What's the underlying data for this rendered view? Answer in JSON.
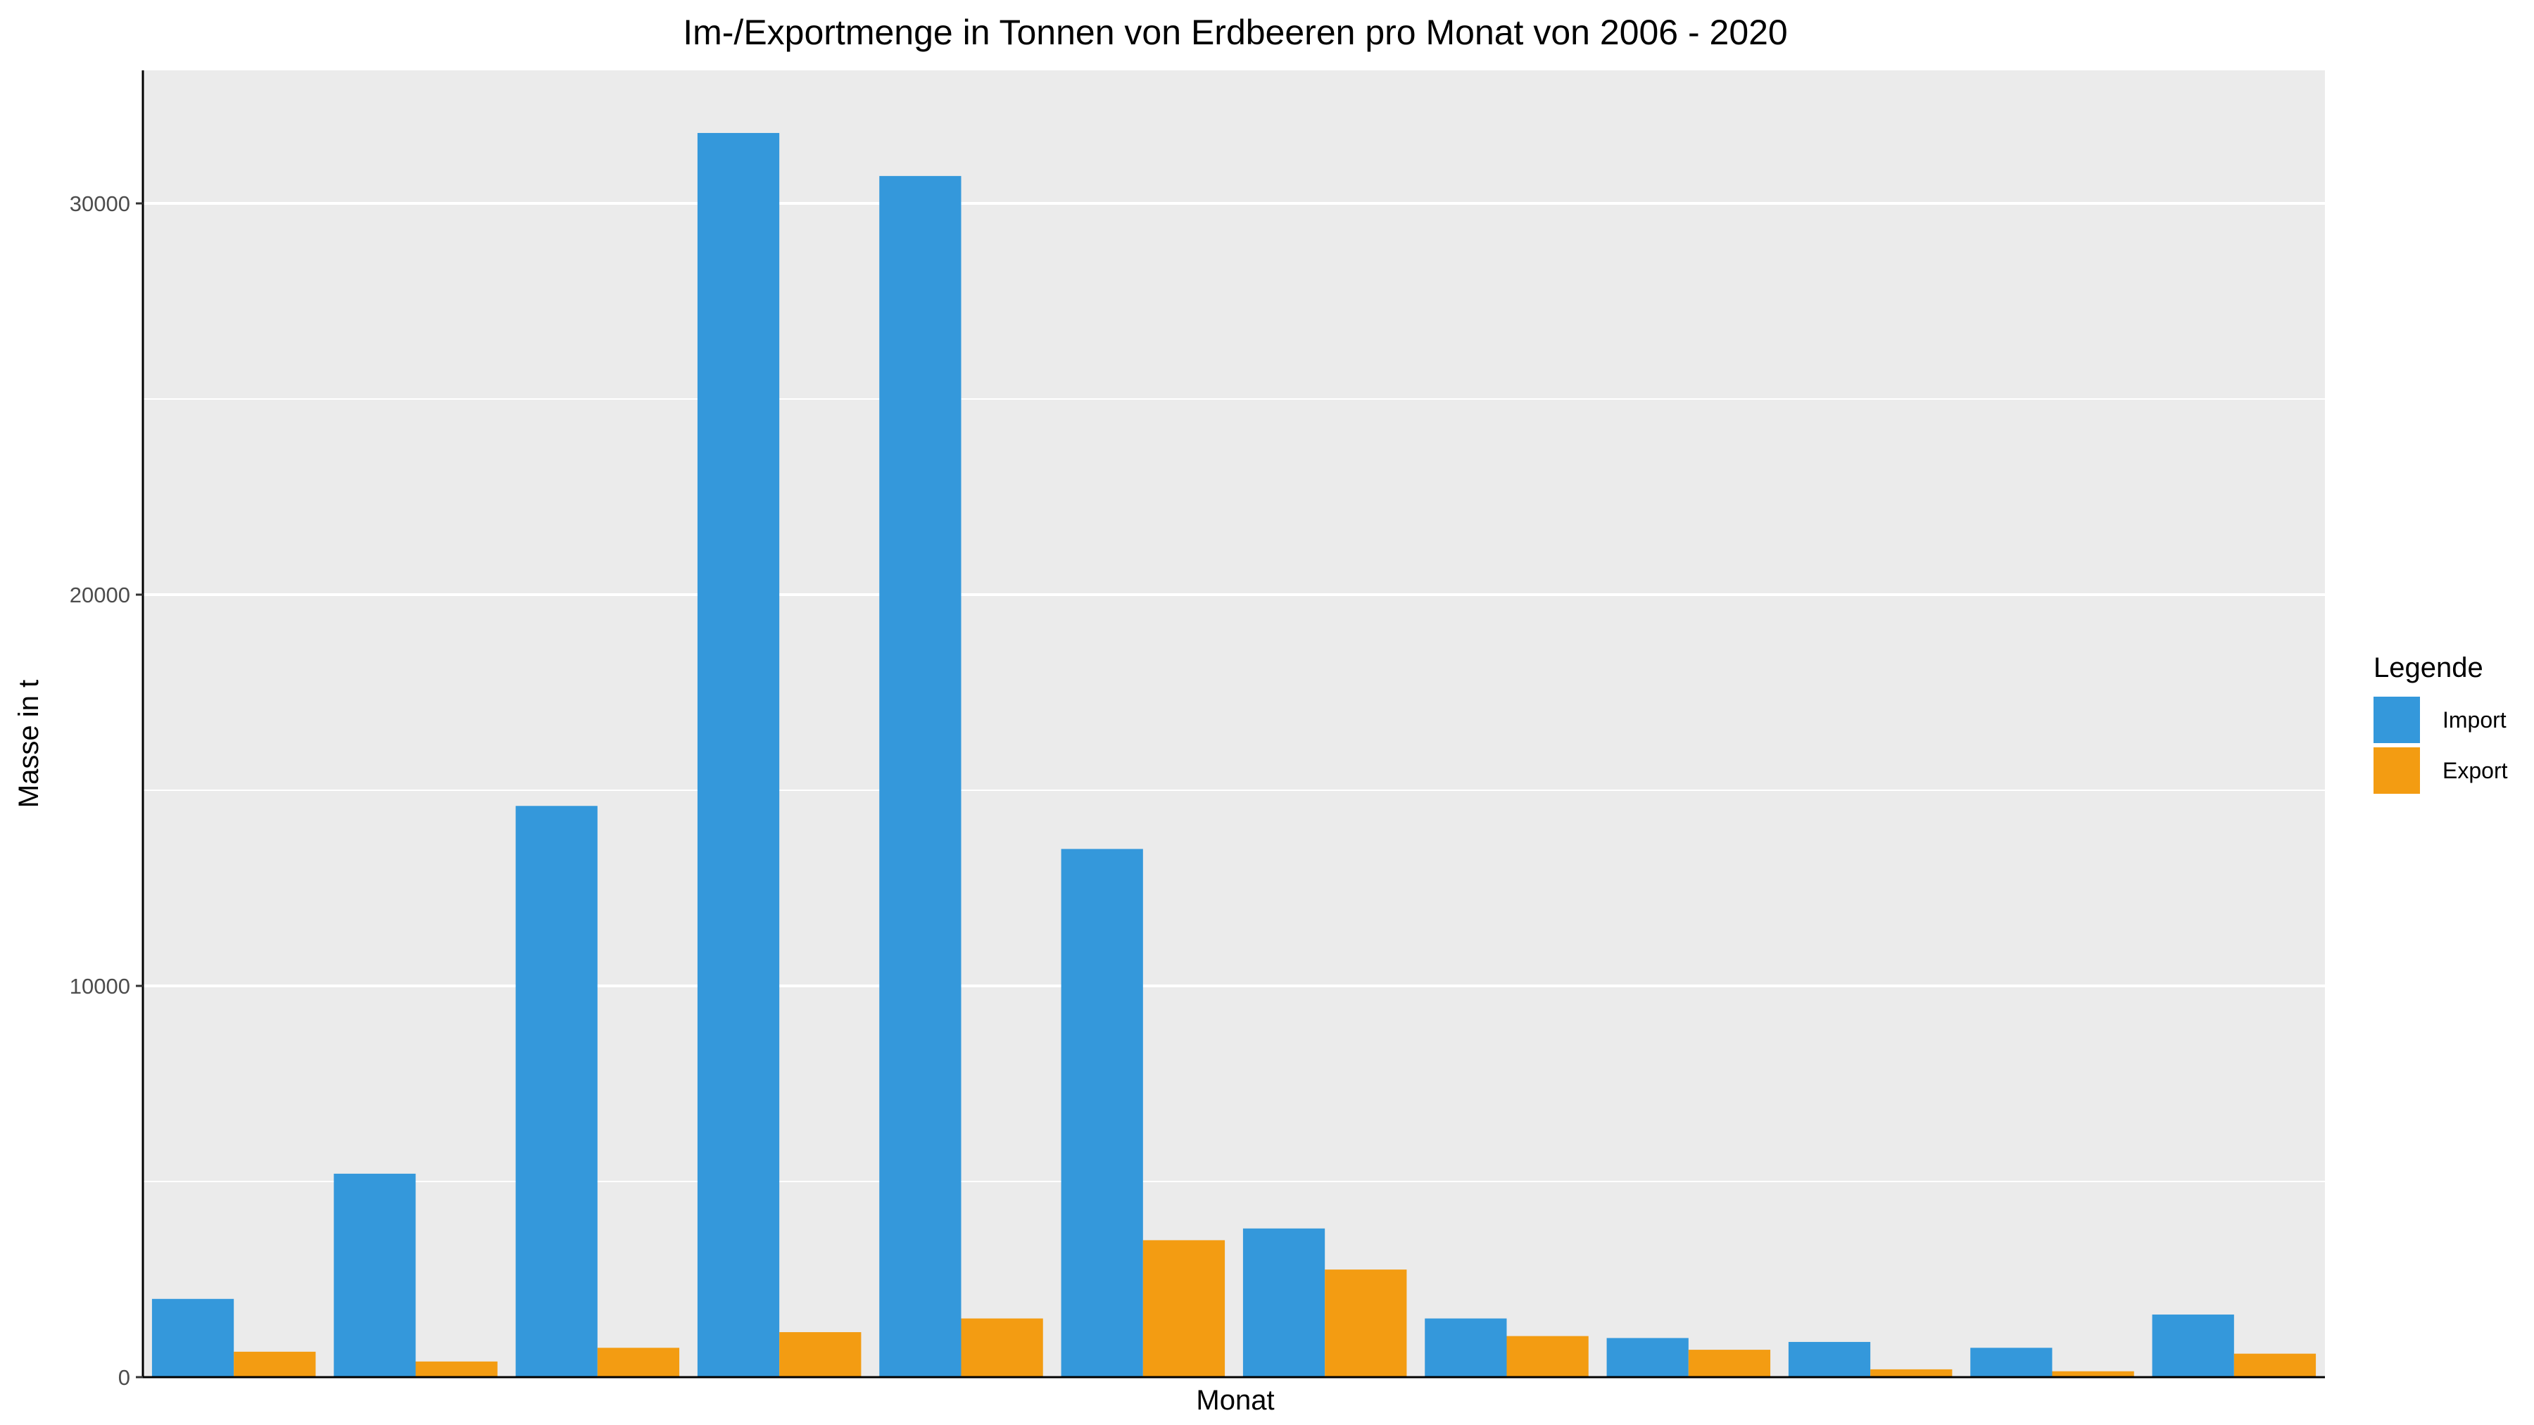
{
  "chart_data": {
    "type": "bar",
    "title": "Im-/Exportmenge in Tonnen von Erdbeeren pro Monat von 2006 - 2020",
    "xlabel": "Monat",
    "ylabel": "Masse in t",
    "ylim": [
      0,
      33400
    ],
    "y_ticks": [
      0,
      10000,
      20000,
      30000
    ],
    "y_tick_labels": [
      "0",
      "10000",
      "20000",
      "30000"
    ],
    "grid": true,
    "x_tick_labels_shown": false,
    "categories": [
      "1",
      "2",
      "3",
      "4",
      "5",
      "6",
      "7",
      "8",
      "9",
      "10",
      "11",
      "12"
    ],
    "series": [
      {
        "name": "Import",
        "color": "#3498db",
        "values": [
          2000,
          5200,
          14600,
          31800,
          30700,
          13500,
          3800,
          1500,
          1000,
          900,
          750,
          1600
        ]
      },
      {
        "name": "Export",
        "color": "#f39c12",
        "values": [
          650,
          400,
          750,
          1150,
          1500,
          3500,
          2750,
          1050,
          700,
          200,
          150,
          600
        ]
      }
    ],
    "legend": {
      "title": "Legende",
      "placement": "right"
    },
    "colors": {
      "panel": "#ebebeb",
      "grid": "#ffffff",
      "axis": "#000000",
      "tick_text": "#4d4d4d"
    }
  }
}
